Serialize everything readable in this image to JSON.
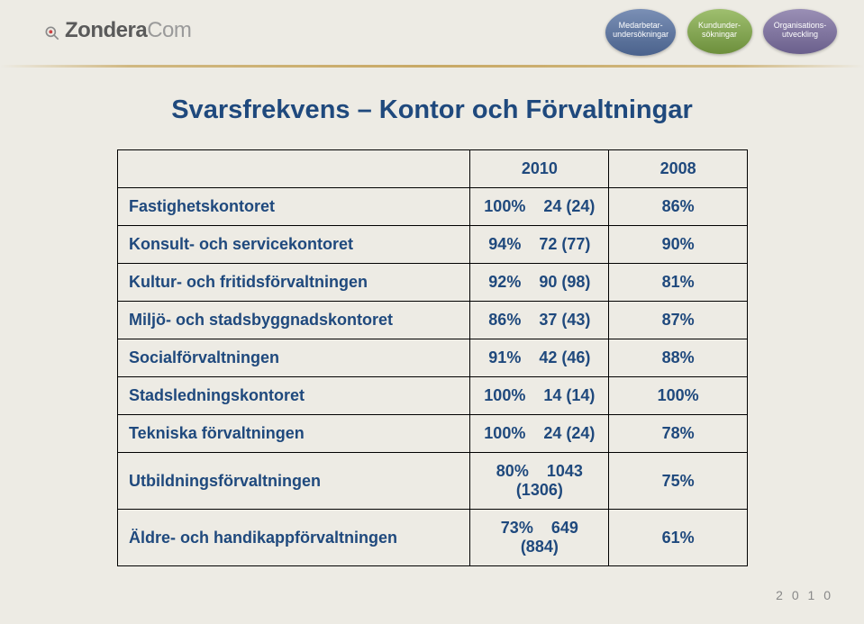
{
  "logo": {
    "zondera": "Zondera",
    "com": "Com"
  },
  "badges": {
    "b1": "Medarbetar-\nundersökningar",
    "b2": "Kundunder-\nsökningar",
    "b3": "Organisations-\nutveckling"
  },
  "title": "Svarsfrekvens – Kontor och Förvaltningar",
  "table": {
    "head": {
      "c1": "",
      "c2": "2010",
      "c3": "2008"
    },
    "rows": [
      {
        "name": "Fastighetskontoret",
        "v1": "100%    24 (24)",
        "v2": "86%"
      },
      {
        "name": "Konsult- och servicekontoret",
        "v1": "94%    72 (77)",
        "v2": "90%"
      },
      {
        "name": "Kultur- och fritidsförvaltningen",
        "v1": "92%    90 (98)",
        "v2": "81%"
      },
      {
        "name": "Miljö- och stadsbyggnadskontoret",
        "v1": "86%    37 (43)",
        "v2": "87%"
      },
      {
        "name": "Socialförvaltningen",
        "v1": "91%    42 (46)",
        "v2": "88%"
      },
      {
        "name": "Stadsledningskontoret",
        "v1": "100%    14 (14)",
        "v2": "100%"
      },
      {
        "name": "Tekniska förvaltningen",
        "v1": "100%    24 (24)",
        "v2": "78%"
      },
      {
        "name": "Utbildningsförvaltningen",
        "v1": "80%    1043 (1306)",
        "v2": "75%"
      },
      {
        "name": "Äldre- och handikappförvaltningen",
        "v1": "73%    649 (884)",
        "v2": "61%"
      }
    ]
  },
  "footer": {
    "year": "2 0 1 0"
  },
  "colors": {
    "accent": "#1f497d",
    "bg": "#edebe4"
  }
}
